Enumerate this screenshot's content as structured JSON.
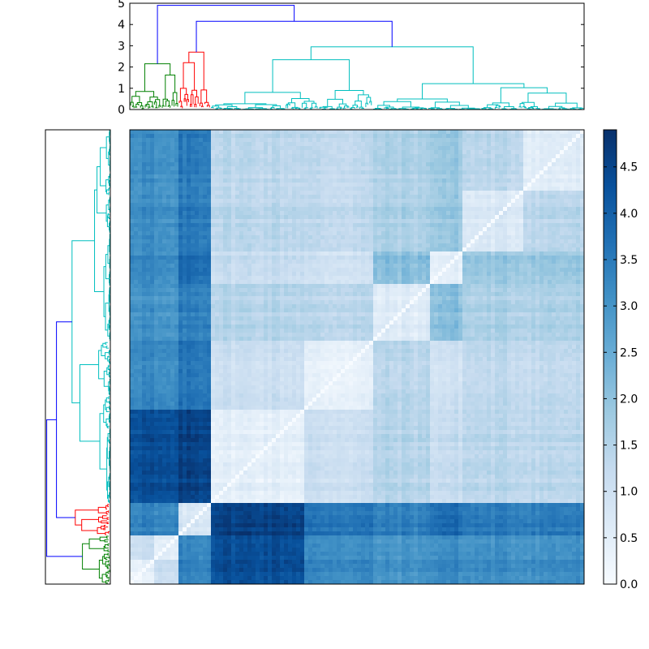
{
  "chart_data": [
    {
      "type": "dendrogram",
      "name": "top-dendrogram",
      "orientation": "top",
      "ylim": [
        0,
        5
      ],
      "yticks": [
        "0",
        "1",
        "2",
        "3",
        "4",
        "5"
      ],
      "cluster_colors": {
        "green": "#008000",
        "red": "#ff0000",
        "cyan": "#00bfbf",
        "root": "#0000ff"
      },
      "clusters": [
        {
          "name": "green",
          "leaf_range": [
            0,
            0.107
          ],
          "height": 2.15
        },
        {
          "name": "red",
          "leaf_range": [
            0.107,
            0.178
          ],
          "height": 2.7
        },
        {
          "name": "cyan",
          "leaf_range": [
            0.178,
            1.0
          ],
          "height": 2.95
        }
      ],
      "links": [
        {
          "from": "red+cyan",
          "to": "green",
          "height": 4.9
        },
        {
          "from": "red",
          "to": "cyan",
          "height": 4.15
        }
      ]
    },
    {
      "type": "dendrogram",
      "name": "left-dendrogram",
      "orientation": "left",
      "mirrors": "top-dendrogram"
    },
    {
      "type": "heatmap",
      "name": "distance-matrix",
      "colormap": "Blues",
      "vmin": 0.0,
      "vmax": 4.9,
      "colorbar_ticks": [
        "0.0",
        "0.5",
        "1.0",
        "1.5",
        "2.0",
        "2.5",
        "3.0",
        "3.5",
        "4.0",
        "4.5"
      ],
      "colorbar_tick_values": [
        0,
        0.5,
        1,
        1.5,
        2,
        2.5,
        3,
        3.5,
        4,
        4.5
      ],
      "block_boundaries": [
        0,
        0.054,
        0.107,
        0.178,
        0.38,
        0.54,
        0.66,
        0.73,
        0.87,
        1.0
      ],
      "block_means": [
        [
          0.4,
          1.1,
          3.4,
          4.4,
          3.3,
          3.1,
          3.3,
          3.2,
          3.2
        ],
        [
          1.1,
          0.4,
          3.2,
          4.3,
          3.1,
          2.9,
          3.1,
          3.0,
          3.0
        ],
        [
          3.4,
          3.2,
          0.8,
          4.6,
          3.6,
          3.4,
          3.8,
          3.5,
          3.5
        ],
        [
          4.4,
          4.3,
          4.6,
          0.5,
          1.1,
          1.5,
          1.2,
          1.4,
          1.4
        ],
        [
          3.3,
          3.1,
          3.6,
          1.1,
          0.4,
          1.4,
          1.0,
          1.3,
          1.3
        ],
        [
          3.1,
          2.9,
          3.4,
          1.5,
          1.4,
          0.6,
          2.1,
          1.6,
          1.6
        ],
        [
          3.3,
          3.1,
          3.8,
          1.2,
          1.0,
          2.1,
          0.5,
          1.9,
          1.9
        ],
        [
          3.2,
          3.0,
          3.5,
          1.4,
          1.3,
          1.6,
          1.9,
          0.7,
          1.4
        ],
        [
          3.2,
          3.0,
          3.5,
          1.4,
          1.3,
          1.6,
          1.9,
          1.4,
          0.6
        ]
      ]
    }
  ]
}
